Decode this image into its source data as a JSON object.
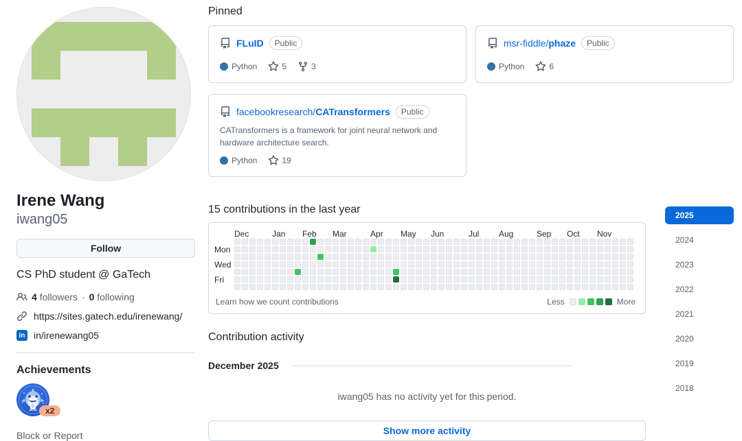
{
  "profile": {
    "name": "Irene Wang",
    "login": "iwang05",
    "follow_label": "Follow",
    "bio": "CS PhD student @ GaTech",
    "followers_count": "4",
    "followers_label": "followers",
    "dot_separator": "·",
    "following_count": "0",
    "following_label": "following",
    "website": "https://sites.gatech.edu/irenewang/",
    "linkedin": "in/irenewang05",
    "linkedin_glyph": "in",
    "achievements_title": "Achievements",
    "achievement_badge": "pull-shark",
    "achievement_multiplier": "x2",
    "block_report_label": "Block or Report",
    "avatar": {
      "color": "#b3cd8a",
      "background": "#ededee",
      "pattern": [
        [
          1,
          1,
          1,
          1,
          1
        ],
        [
          1,
          0,
          0,
          0,
          1
        ],
        [
          0,
          0,
          0,
          0,
          0
        ],
        [
          1,
          1,
          1,
          1,
          1
        ],
        [
          0,
          1,
          0,
          1,
          0
        ]
      ]
    }
  },
  "pinned": {
    "title": "Pinned",
    "repos": [
      {
        "owner": "",
        "name": "FLuID",
        "visibility": "Public",
        "language": "Python",
        "language_color": "#3572a5",
        "stars": "5",
        "forks": "3"
      },
      {
        "owner": "msr-fiddle/",
        "name": "phaze",
        "visibility": "Public",
        "language": "Python",
        "language_color": "#3572a5",
        "stars": "6"
      },
      {
        "owner": "facebookresearch/",
        "name": "CATransformers",
        "visibility": "Public",
        "description": "CATransformers is a framework for joint neural network and hardware architecture search.",
        "language": "Python",
        "language_color": "#3572a5",
        "stars": "19"
      }
    ]
  },
  "chart_data": {
    "type": "heatmap",
    "title": "15 contributions in the last year",
    "weeks": 53,
    "days": 7,
    "months": [
      {
        "label": "Dec",
        "week": 0
      },
      {
        "label": "Jan",
        "week": 5
      },
      {
        "label": "Feb",
        "week": 9
      },
      {
        "label": "Mar",
        "week": 13
      },
      {
        "label": "Apr",
        "week": 18
      },
      {
        "label": "May",
        "week": 22
      },
      {
        "label": "Jun",
        "week": 26
      },
      {
        "label": "Jul",
        "week": 31
      },
      {
        "label": "Aug",
        "week": 35
      },
      {
        "label": "Sep",
        "week": 40
      },
      {
        "label": "Oct",
        "week": 44
      },
      {
        "label": "Nov",
        "week": 48
      }
    ],
    "day_labels": [
      {
        "label": "Mon",
        "row": 1
      },
      {
        "label": "Wed",
        "row": 3
      },
      {
        "label": "Fri",
        "row": 5
      }
    ],
    "cells": [
      {
        "week": 8,
        "day": 4,
        "level": 2
      },
      {
        "week": 10,
        "day": 0,
        "level": 3
      },
      {
        "week": 11,
        "day": 2,
        "level": 2
      },
      {
        "week": 18,
        "day": 1,
        "level": 1
      },
      {
        "week": 21,
        "day": 4,
        "level": 2
      },
      {
        "week": 21,
        "day": 5,
        "level": 4
      }
    ],
    "level_colors": [
      "#ebedf0",
      "#9be9a8",
      "#40c463",
      "#30a14e",
      "#216e39"
    ],
    "footer_link": "Learn how we count contributions",
    "legend_less": "Less",
    "legend_more": "More"
  },
  "years": {
    "selected": "2025",
    "list": [
      "2025",
      "2024",
      "2023",
      "2022",
      "2021",
      "2020",
      "2019",
      "2018"
    ]
  },
  "activity": {
    "title": "Contribution activity",
    "period": "December 2025",
    "empty_message": "iwang05 has no activity yet for this period.",
    "show_more_label": "Show more activity"
  }
}
